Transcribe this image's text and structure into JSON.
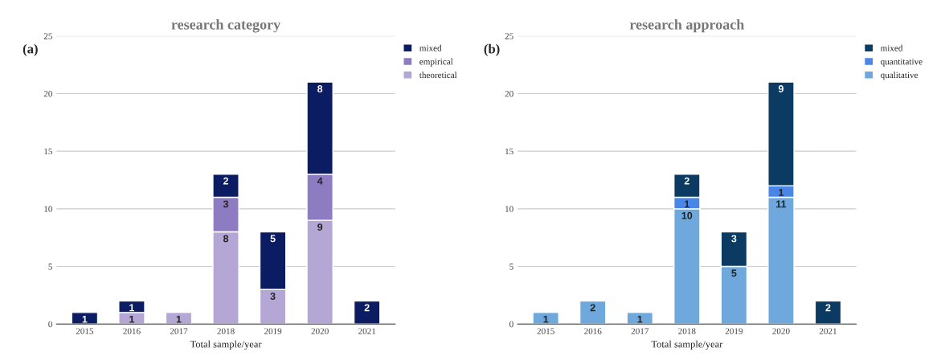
{
  "chart_data": [
    {
      "type": "bar",
      "title": "research category",
      "xlabel": "Total sample/year",
      "annotations": [
        "(a)"
      ],
      "categories": [
        "2015",
        "2016",
        "2017",
        "2018",
        "2019",
        "2020",
        "2021"
      ],
      "stacked": true,
      "data_labels": true,
      "ylim": [
        0,
        25
      ],
      "yticks": [
        0,
        5,
        10,
        15,
        20,
        25
      ],
      "grid": "y",
      "legend": "top right",
      "series": [
        {
          "name": "theoretical",
          "color": "#b4a7d6",
          "values": [
            null,
            1,
            1,
            8,
            3,
            9,
            null
          ]
        },
        {
          "name": "empirical",
          "color": "#8e7cc3",
          "values": [
            null,
            null,
            null,
            3,
            null,
            4,
            null
          ]
        },
        {
          "name": "mixed",
          "color": "#0c1c63",
          "values": [
            1,
            1,
            null,
            2,
            5,
            8,
            2
          ]
        }
      ]
    },
    {
      "type": "bar",
      "title": "research approach",
      "xlabel": "Total sample/year",
      "annotations": [
        "(b)"
      ],
      "categories": [
        "2015",
        "2016",
        "2017",
        "2018",
        "2019",
        "2020",
        "2021"
      ],
      "stacked": true,
      "data_labels": true,
      "ylim": [
        0,
        25
      ],
      "yticks": [
        0,
        5,
        10,
        15,
        20,
        25
      ],
      "grid": "y",
      "legend": "top right",
      "series": [
        {
          "name": "qualitative",
          "color": "#6fa8dc",
          "values": [
            1,
            2,
            1,
            10,
            5,
            11,
            null
          ]
        },
        {
          "name": "quantitative",
          "color": "#4a86e8",
          "values": [
            null,
            null,
            null,
            1,
            null,
            1,
            null
          ]
        },
        {
          "name": "mixed",
          "color": "#0b3a63",
          "values": [
            null,
            null,
            null,
            2,
            3,
            9,
            2
          ]
        }
      ]
    }
  ]
}
